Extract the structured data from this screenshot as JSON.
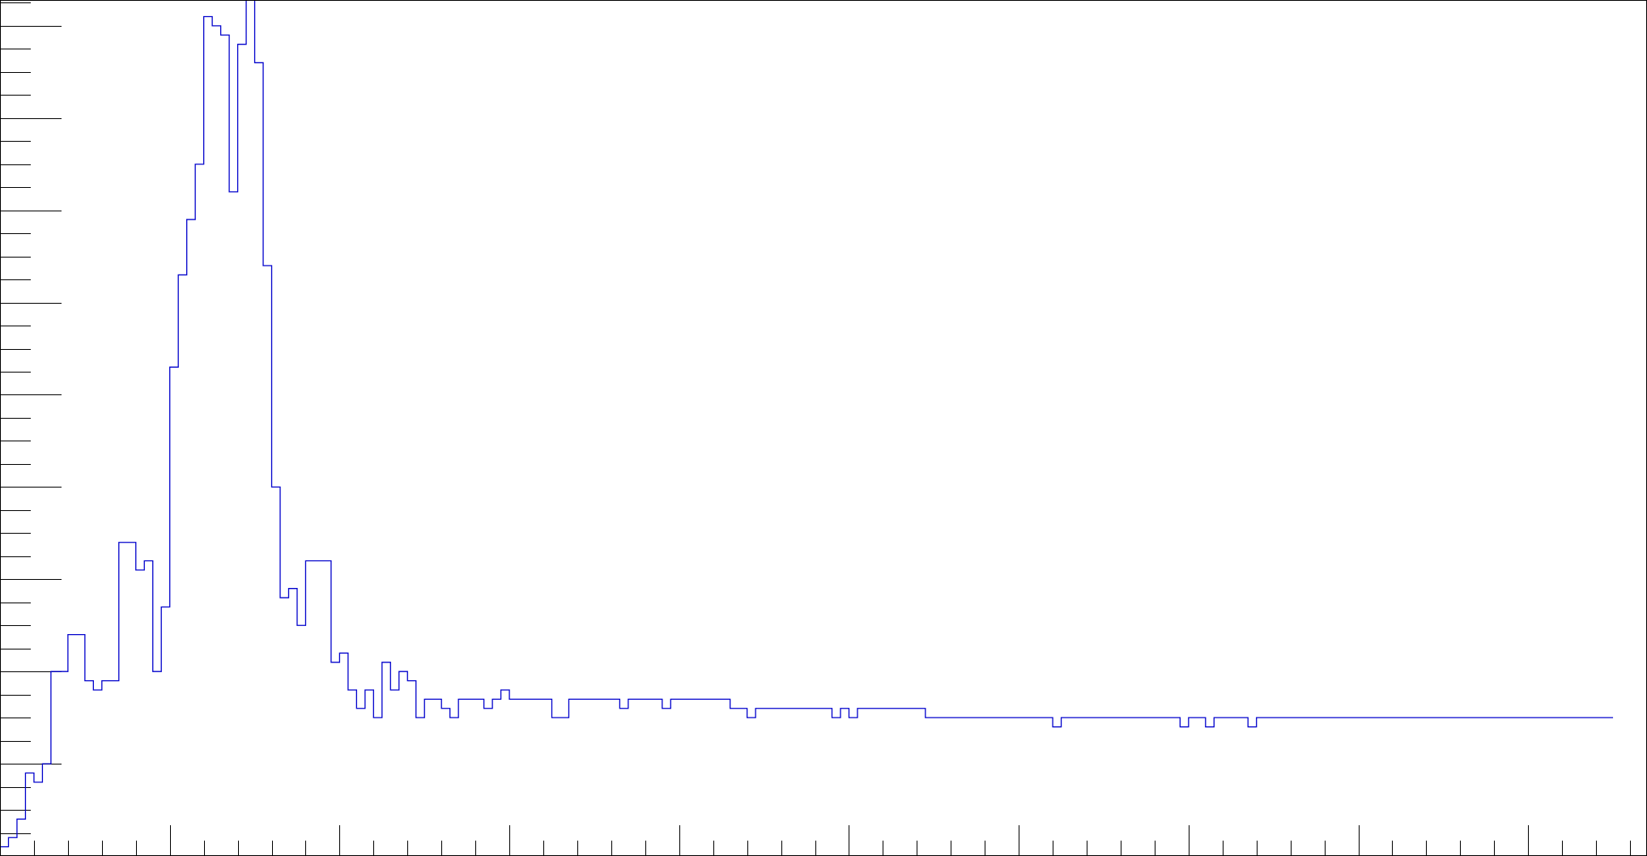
{
  "chart_data": {
    "type": "histogram",
    "title": "",
    "xlabel": "",
    "ylabel": "",
    "xlim": [
      0,
      194
    ],
    "ylim": [
      0,
      92.8
    ],
    "grid": false,
    "legend": null,
    "bin_width": 1,
    "values": [
      1,
      2,
      4,
      9,
      8,
      10,
      20,
      20,
      24,
      24,
      19,
      18,
      19,
      19,
      34,
      34,
      31,
      32,
      20,
      27,
      53,
      63,
      69,
      75,
      91,
      90,
      89,
      72,
      88,
      96,
      86,
      64,
      40,
      28,
      29,
      25,
      32,
      32,
      32,
      21,
      22,
      18,
      16,
      18,
      15,
      21,
      18,
      20,
      19,
      15,
      17,
      17,
      16,
      15,
      17,
      17,
      17,
      16,
      17,
      18,
      17,
      17,
      17,
      17,
      17,
      15,
      15,
      17,
      17,
      17,
      17,
      17,
      17,
      16,
      17,
      17,
      17,
      17,
      16,
      17,
      17,
      17,
      17,
      17,
      17,
      17,
      16,
      16,
      15,
      16,
      16,
      16,
      16,
      16,
      16,
      16,
      16,
      16,
      15,
      16,
      15,
      16,
      16,
      16,
      16,
      16,
      16,
      16,
      16,
      15,
      15,
      15,
      15,
      15,
      15,
      15,
      15,
      15,
      15,
      15,
      15,
      15,
      15,
      15,
      14,
      15,
      15,
      15,
      15,
      15,
      15,
      15,
      15,
      15,
      15,
      15,
      15,
      15,
      15,
      14,
      15,
      15,
      14,
      15,
      15,
      15,
      15,
      14,
      15,
      15,
      15,
      15,
      15,
      15,
      15,
      15,
      15,
      15,
      15,
      15,
      15,
      15,
      15,
      15,
      15,
      15,
      15,
      15,
      15,
      15,
      15,
      15,
      15,
      15,
      15,
      15,
      15,
      15,
      15,
      15,
      15,
      15,
      15,
      15,
      15,
      15,
      15,
      15,
      15,
      15
    ],
    "colors": {
      "line": "#0000cc",
      "axis": "#000000",
      "frame": "#000000"
    }
  }
}
